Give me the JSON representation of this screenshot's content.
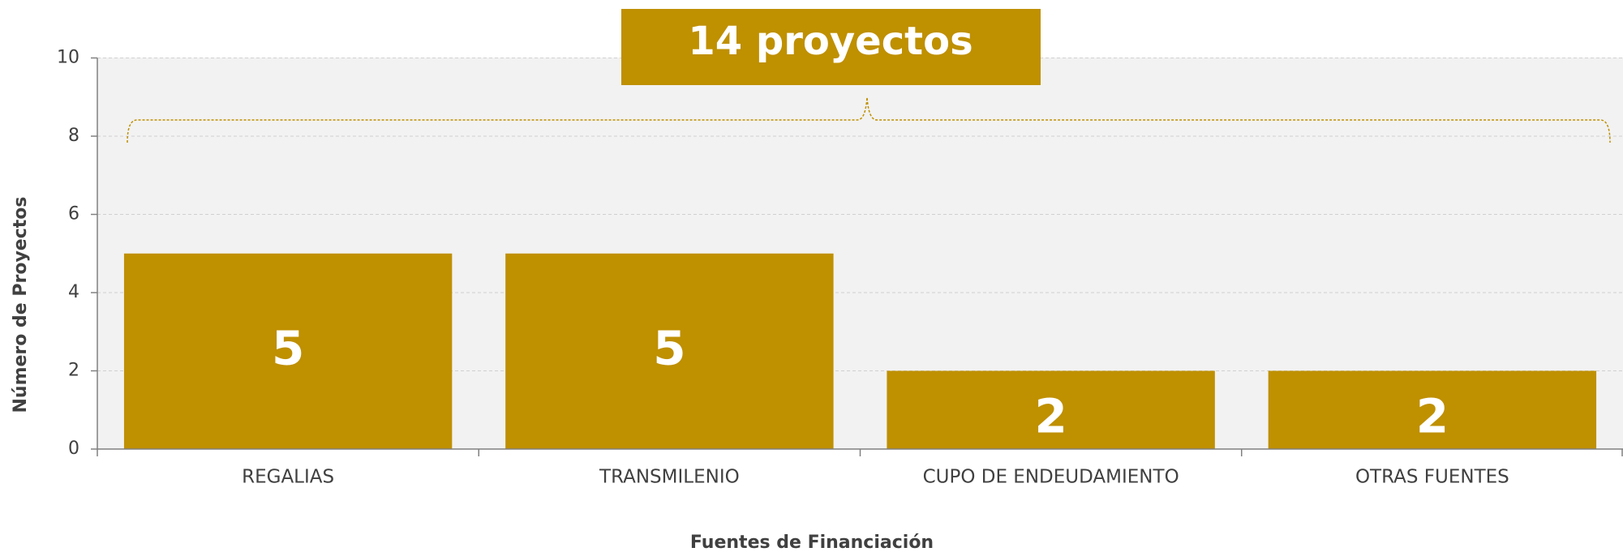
{
  "chart_data": {
    "type": "bar",
    "annotation": "14 proyectos",
    "xlabel": "Fuentes de Financiación",
    "ylabel": "Número de Proyectos",
    "categories": [
      "REGALIAS",
      "TRANSMILENIO",
      "CUPO DE ENDEUDAMIENTO",
      "OTRAS FUENTES"
    ],
    "values": [
      5,
      5,
      2,
      2
    ],
    "color": "#bf9000",
    "ylim": [
      0,
      10
    ],
    "yticks": [
      0,
      2,
      4,
      6,
      8,
      10
    ],
    "grid": true
  }
}
